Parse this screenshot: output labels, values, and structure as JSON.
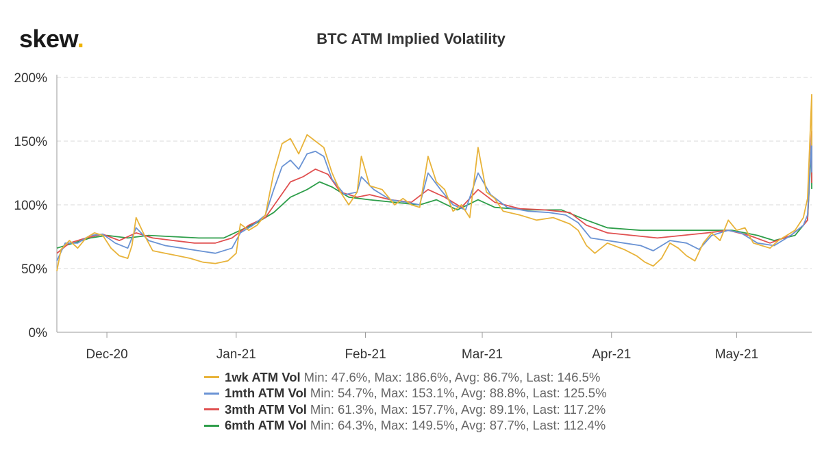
{
  "brand": {
    "name": "skew",
    "dot": "."
  },
  "chart_data": {
    "type": "line",
    "title": "BTC ATM Implied Volatility",
    "xlabel": "",
    "ylabel": "",
    "ylim": [
      0,
      200
    ],
    "xlim": [
      "2020-11-19",
      "2021-05-19"
    ],
    "yticks": [
      0,
      50,
      100,
      150,
      200
    ],
    "ytick_labels": [
      "0%",
      "50%",
      "100%",
      "150%",
      "200%"
    ],
    "xticks": [
      "2020-12-01",
      "2021-01-01",
      "2021-02-01",
      "2021-03-01",
      "2021-04-01",
      "2021-05-01"
    ],
    "xtick_labels": [
      "Dec-20",
      "Jan-21",
      "Feb-21",
      "Mar-21",
      "Apr-21",
      "May-21"
    ],
    "grid": true,
    "legend": "bottom",
    "series": [
      {
        "name": "1wk ATM Vol",
        "stats": "Min: 47.6%, Max: 186.6%, Avg: 86.7%, Last: 146.5%",
        "color": "#e8b33a",
        "points": [
          [
            "2020-11-19",
            48
          ],
          [
            "2020-11-20",
            65
          ],
          [
            "2020-11-22",
            72
          ],
          [
            "2020-11-24",
            66
          ],
          [
            "2020-11-26",
            74
          ],
          [
            "2020-11-28",
            78
          ],
          [
            "2020-11-30",
            76
          ],
          [
            "2020-12-02",
            66
          ],
          [
            "2020-12-04",
            60
          ],
          [
            "2020-12-06",
            58
          ],
          [
            "2020-12-07",
            68
          ],
          [
            "2020-12-08",
            90
          ],
          [
            "2020-12-10",
            76
          ],
          [
            "2020-12-12",
            64
          ],
          [
            "2020-12-15",
            62
          ],
          [
            "2020-12-18",
            60
          ],
          [
            "2020-12-21",
            58
          ],
          [
            "2020-12-24",
            55
          ],
          [
            "2020-12-27",
            54
          ],
          [
            "2020-12-30",
            56
          ],
          [
            "2021-01-01",
            62
          ],
          [
            "2021-01-02",
            85
          ],
          [
            "2021-01-04",
            80
          ],
          [
            "2021-01-06",
            84
          ],
          [
            "2021-01-08",
            92
          ],
          [
            "2021-01-10",
            125
          ],
          [
            "2021-01-12",
            148
          ],
          [
            "2021-01-14",
            152
          ],
          [
            "2021-01-16",
            140
          ],
          [
            "2021-01-18",
            155
          ],
          [
            "2021-01-20",
            150
          ],
          [
            "2021-01-22",
            145
          ],
          [
            "2021-01-24",
            125
          ],
          [
            "2021-01-26",
            110
          ],
          [
            "2021-01-28",
            100
          ],
          [
            "2021-01-30",
            110
          ],
          [
            "2021-01-31",
            138
          ],
          [
            "2021-02-02",
            115
          ],
          [
            "2021-02-05",
            112
          ],
          [
            "2021-02-08",
            100
          ],
          [
            "2021-02-10",
            105
          ],
          [
            "2021-02-12",
            100
          ],
          [
            "2021-02-14",
            98
          ],
          [
            "2021-02-16",
            138
          ],
          [
            "2021-02-18",
            118
          ],
          [
            "2021-02-20",
            112
          ],
          [
            "2021-02-22",
            95
          ],
          [
            "2021-02-24",
            100
          ],
          [
            "2021-02-26",
            90
          ],
          [
            "2021-02-28",
            145
          ],
          [
            "2021-03-02",
            110
          ],
          [
            "2021-03-04",
            105
          ],
          [
            "2021-03-06",
            95
          ],
          [
            "2021-03-10",
            92
          ],
          [
            "2021-03-14",
            88
          ],
          [
            "2021-03-18",
            90
          ],
          [
            "2021-03-22",
            85
          ],
          [
            "2021-03-24",
            80
          ],
          [
            "2021-03-26",
            68
          ],
          [
            "2021-03-28",
            62
          ],
          [
            "2021-03-31",
            70
          ],
          [
            "2021-04-04",
            65
          ],
          [
            "2021-04-07",
            60
          ],
          [
            "2021-04-09",
            55
          ],
          [
            "2021-04-11",
            52
          ],
          [
            "2021-04-13",
            58
          ],
          [
            "2021-04-15",
            70
          ],
          [
            "2021-04-17",
            66
          ],
          [
            "2021-04-19",
            60
          ],
          [
            "2021-04-21",
            56
          ],
          [
            "2021-04-23",
            70
          ],
          [
            "2021-04-25",
            78
          ],
          [
            "2021-04-27",
            72
          ],
          [
            "2021-04-29",
            88
          ],
          [
            "2021-05-01",
            80
          ],
          [
            "2021-05-03",
            82
          ],
          [
            "2021-05-05",
            70
          ],
          [
            "2021-05-07",
            68
          ],
          [
            "2021-05-09",
            66
          ],
          [
            "2021-05-11",
            72
          ],
          [
            "2021-05-13",
            76
          ],
          [
            "2021-05-15",
            80
          ],
          [
            "2021-05-17",
            90
          ],
          [
            "2021-05-18",
            105
          ],
          [
            "2021-05-19",
            186.6
          ],
          [
            "2021-05-19",
            146.5
          ]
        ]
      },
      {
        "name": "1mth ATM Vol",
        "stats": "Min: 54.7%, Max: 153.1%, Avg: 88.8%, Last: 125.5%",
        "color": "#6a93d4",
        "points": [
          [
            "2020-11-19",
            56
          ],
          [
            "2020-11-21",
            70
          ],
          [
            "2020-11-24",
            70
          ],
          [
            "2020-11-27",
            76
          ],
          [
            "2020-11-30",
            77
          ],
          [
            "2020-12-03",
            70
          ],
          [
            "2020-12-06",
            66
          ],
          [
            "2020-12-08",
            82
          ],
          [
            "2020-12-11",
            72
          ],
          [
            "2020-12-15",
            68
          ],
          [
            "2020-12-19",
            66
          ],
          [
            "2020-12-23",
            64
          ],
          [
            "2020-12-27",
            62
          ],
          [
            "2020-12-31",
            66
          ],
          [
            "2021-01-02",
            78
          ],
          [
            "2021-01-05",
            84
          ],
          [
            "2021-01-08",
            92
          ],
          [
            "2021-01-10",
            112
          ],
          [
            "2021-01-12",
            130
          ],
          [
            "2021-01-14",
            135
          ],
          [
            "2021-01-16",
            128
          ],
          [
            "2021-01-18",
            140
          ],
          [
            "2021-01-20",
            142
          ],
          [
            "2021-01-22",
            138
          ],
          [
            "2021-01-24",
            120
          ],
          [
            "2021-01-27",
            108
          ],
          [
            "2021-01-30",
            110
          ],
          [
            "2021-01-31",
            122
          ],
          [
            "2021-02-03",
            112
          ],
          [
            "2021-02-07",
            104
          ],
          [
            "2021-02-11",
            102
          ],
          [
            "2021-02-14",
            100
          ],
          [
            "2021-02-16",
            125
          ],
          [
            "2021-02-19",
            112
          ],
          [
            "2021-02-22",
            100
          ],
          [
            "2021-02-25",
            96
          ],
          [
            "2021-02-28",
            125
          ],
          [
            "2021-03-03",
            108
          ],
          [
            "2021-03-07",
            98
          ],
          [
            "2021-03-12",
            95
          ],
          [
            "2021-03-17",
            94
          ],
          [
            "2021-03-21",
            92
          ],
          [
            "2021-03-24",
            86
          ],
          [
            "2021-03-27",
            74
          ],
          [
            "2021-03-31",
            72
          ],
          [
            "2021-04-04",
            70
          ],
          [
            "2021-04-08",
            68
          ],
          [
            "2021-04-11",
            64
          ],
          [
            "2021-04-15",
            72
          ],
          [
            "2021-04-19",
            70
          ],
          [
            "2021-04-22",
            65
          ],
          [
            "2021-04-25",
            76
          ],
          [
            "2021-04-29",
            80
          ],
          [
            "2021-05-02",
            78
          ],
          [
            "2021-05-06",
            70
          ],
          [
            "2021-05-10",
            68
          ],
          [
            "2021-05-14",
            76
          ],
          [
            "2021-05-17",
            84
          ],
          [
            "2021-05-18",
            92
          ],
          [
            "2021-05-19",
            153.1
          ],
          [
            "2021-05-19",
            125.5
          ]
        ]
      },
      {
        "name": "3mth ATM Vol",
        "stats": "Min: 61.3%, Max: 157.7%, Avg: 89.1%, Last: 117.2%",
        "color": "#e05050",
        "points": [
          [
            "2020-11-19",
            62
          ],
          [
            "2020-11-22",
            70
          ],
          [
            "2020-11-26",
            74
          ],
          [
            "2020-11-30",
            77
          ],
          [
            "2020-12-04",
            72
          ],
          [
            "2020-12-08",
            78
          ],
          [
            "2020-12-12",
            74
          ],
          [
            "2020-12-17",
            72
          ],
          [
            "2020-12-22",
            70
          ],
          [
            "2020-12-27",
            70
          ],
          [
            "2020-12-31",
            74
          ],
          [
            "2021-01-04",
            84
          ],
          [
            "2021-01-08",
            90
          ],
          [
            "2021-01-11",
            104
          ],
          [
            "2021-01-14",
            118
          ],
          [
            "2021-01-17",
            122
          ],
          [
            "2021-01-20",
            128
          ],
          [
            "2021-01-23",
            124
          ],
          [
            "2021-01-26",
            110
          ],
          [
            "2021-01-30",
            106
          ],
          [
            "2021-02-02",
            108
          ],
          [
            "2021-02-07",
            104
          ],
          [
            "2021-02-12",
            102
          ],
          [
            "2021-02-16",
            112
          ],
          [
            "2021-02-20",
            106
          ],
          [
            "2021-02-24",
            98
          ],
          [
            "2021-02-28",
            112
          ],
          [
            "2021-03-04",
            102
          ],
          [
            "2021-03-10",
            97
          ],
          [
            "2021-03-16",
            96
          ],
          [
            "2021-03-22",
            94
          ],
          [
            "2021-03-26",
            84
          ],
          [
            "2021-03-31",
            78
          ],
          [
            "2021-04-06",
            76
          ],
          [
            "2021-04-12",
            74
          ],
          [
            "2021-04-18",
            76
          ],
          [
            "2021-04-24",
            78
          ],
          [
            "2021-04-29",
            80
          ],
          [
            "2021-05-04",
            76
          ],
          [
            "2021-05-09",
            70
          ],
          [
            "2021-05-14",
            76
          ],
          [
            "2021-05-17",
            84
          ],
          [
            "2021-05-18",
            88
          ],
          [
            "2021-05-19",
            157.7
          ],
          [
            "2021-05-19",
            117.2
          ]
        ]
      },
      {
        "name": "6mth ATM Vol",
        "stats": "Min: 64.3%, Max: 149.5%, Avg: 87.7%, Last: 112.4%",
        "color": "#2e9e4a",
        "points": [
          [
            "2020-11-19",
            66
          ],
          [
            "2020-11-23",
            70
          ],
          [
            "2020-11-27",
            74
          ],
          [
            "2020-12-01",
            76
          ],
          [
            "2020-12-06",
            74
          ],
          [
            "2020-12-11",
            76
          ],
          [
            "2020-12-17",
            75
          ],
          [
            "2020-12-23",
            74
          ],
          [
            "2020-12-29",
            74
          ],
          [
            "2021-01-02",
            80
          ],
          [
            "2021-01-06",
            86
          ],
          [
            "2021-01-10",
            94
          ],
          [
            "2021-01-14",
            106
          ],
          [
            "2021-01-18",
            112
          ],
          [
            "2021-01-21",
            118
          ],
          [
            "2021-01-24",
            114
          ],
          [
            "2021-01-28",
            106
          ],
          [
            "2021-02-02",
            104
          ],
          [
            "2021-02-08",
            102
          ],
          [
            "2021-02-14",
            100
          ],
          [
            "2021-02-18",
            104
          ],
          [
            "2021-02-23",
            96
          ],
          [
            "2021-02-28",
            104
          ],
          [
            "2021-03-04",
            98
          ],
          [
            "2021-03-12",
            96
          ],
          [
            "2021-03-20",
            96
          ],
          [
            "2021-03-26",
            88
          ],
          [
            "2021-03-31",
            82
          ],
          [
            "2021-04-08",
            80
          ],
          [
            "2021-04-16",
            80
          ],
          [
            "2021-04-24",
            80
          ],
          [
            "2021-04-30",
            80
          ],
          [
            "2021-05-06",
            76
          ],
          [
            "2021-05-10",
            72
          ],
          [
            "2021-05-15",
            76
          ],
          [
            "2021-05-17",
            84
          ],
          [
            "2021-05-18",
            88
          ],
          [
            "2021-05-19",
            149.5
          ],
          [
            "2021-05-19",
            112.4
          ]
        ]
      }
    ]
  }
}
